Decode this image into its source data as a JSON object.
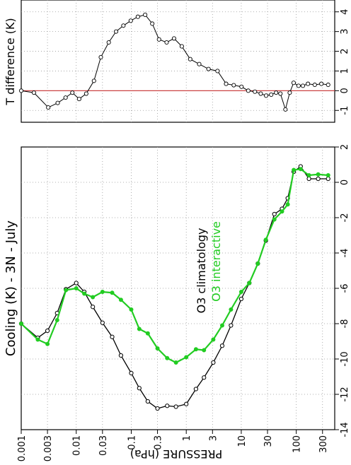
{
  "colors": {
    "climatology": "#000000",
    "interactive": "#22cc22",
    "zero_line": "#cc4444",
    "grid": "#999999"
  },
  "chart_data": [
    {
      "id": "temperature-difference",
      "type": "line",
      "title": "",
      "ylabel": "T difference (K)",
      "xlabel": "",
      "x_scale": "log",
      "xlim": [
        0.001,
        500
      ],
      "ylim": [
        -1.6,
        4.6
      ],
      "ytick_values": [
        -1,
        0,
        1,
        2,
        3,
        4
      ],
      "ytick_labels": [
        "-1",
        "0",
        "1",
        "2",
        "3",
        "4"
      ],
      "grid": true,
      "reference_line": 0,
      "series": [
        {
          "color": "#000000",
          "x": [
            0.001,
            0.0017,
            0.0031,
            0.0046,
            0.0064,
            0.0085,
            0.0113,
            0.0152,
            0.021,
            0.028,
            0.039,
            0.053,
            0.072,
            0.098,
            0.132,
            0.179,
            0.241,
            0.32,
            0.44,
            0.6,
            0.83,
            1.18,
            1.72,
            2.54,
            3.7,
            5.3,
            7.3,
            10.1,
            13.4,
            17.7,
            22.6,
            28.3,
            35.0,
            43.0,
            51.5,
            63.5,
            76.0,
            89.5,
            110,
            132,
            163,
            217,
            286,
            380
          ],
          "y": [
            0.0,
            -0.1,
            -0.85,
            -0.62,
            -0.35,
            -0.1,
            -0.42,
            -0.15,
            0.5,
            1.7,
            2.45,
            3.0,
            3.3,
            3.55,
            3.75,
            3.85,
            3.4,
            2.6,
            2.45,
            2.65,
            2.25,
            1.6,
            1.35,
            1.1,
            1.0,
            0.35,
            0.28,
            0.2,
            0.0,
            -0.05,
            -0.15,
            -0.25,
            -0.2,
            -0.1,
            -0.15,
            -0.95,
            -0.1,
            0.4,
            0.25,
            0.25,
            0.35,
            0.3,
            0.35,
            0.3
          ]
        }
      ]
    },
    {
      "id": "cooling-rate",
      "type": "line",
      "title": "Cooling (K) - 3N - July",
      "xlabel": "PRESSURE (hPa)",
      "ylabel": "",
      "x_scale": "log",
      "xlim": [
        0.001,
        500
      ],
      "xtick_values": [
        0.001,
        0.003,
        0.01,
        0.03,
        0.1,
        0.3,
        1,
        3,
        10,
        30,
        100,
        300
      ],
      "xtick_labels": [
        "0.001",
        "0.003",
        "0.01",
        "0.03",
        "0.1",
        "0.3",
        "1",
        "3",
        "10",
        "30",
        "100",
        "300"
      ],
      "ylim": [
        -14,
        2
      ],
      "ytick_values": [
        -14,
        -12,
        -10,
        -8,
        -6,
        -4,
        -2,
        0,
        2
      ],
      "ytick_labels": [
        "-14",
        "-12",
        "-10",
        "-8",
        "-6",
        "-4",
        "-2",
        "0",
        "2"
      ],
      "grid": true,
      "series": [
        {
          "name": "O3 climatology",
          "color": "#000000",
          "marker": "open-circle",
          "x": [
            0.001,
            0.002,
            0.003,
            0.0045,
            0.0065,
            0.01,
            0.014,
            0.02,
            0.03,
            0.045,
            0.065,
            0.1,
            0.14,
            0.2,
            0.3,
            0.45,
            0.65,
            1,
            1.5,
            2.1,
            3.1,
            4.5,
            6.5,
            10,
            14,
            20,
            28,
            40,
            55,
            70,
            90,
            120,
            170,
            250,
            380
          ],
          "y": [
            -8.0,
            -8.8,
            -8.4,
            -7.4,
            -6.05,
            -5.7,
            -6.2,
            -7.05,
            -7.95,
            -8.75,
            -9.8,
            -10.8,
            -11.65,
            -12.4,
            -12.8,
            -12.65,
            -12.7,
            -12.55,
            -11.7,
            -11.05,
            -10.2,
            -9.25,
            -8.1,
            -6.6,
            -5.7,
            -4.6,
            -3.3,
            -1.8,
            -1.5,
            -0.9,
            0.6,
            0.9,
            0.2,
            0.2,
            0.2
          ]
        },
        {
          "name": "O3 interactive",
          "color": "#22cc22",
          "marker": "filled-circle",
          "x": [
            0.001,
            0.002,
            0.003,
            0.0045,
            0.0065,
            0.01,
            0.014,
            0.02,
            0.03,
            0.045,
            0.065,
            0.1,
            0.14,
            0.2,
            0.3,
            0.45,
            0.65,
            1,
            1.5,
            2.1,
            3.1,
            4.5,
            6.5,
            10,
            14,
            20,
            28,
            40,
            55,
            70,
            90,
            120,
            170,
            250,
            380
          ],
          "y": [
            -8.0,
            -8.9,
            -9.15,
            -7.8,
            -6.1,
            -6.0,
            -6.3,
            -6.5,
            -6.2,
            -6.25,
            -6.65,
            -7.2,
            -8.3,
            -8.55,
            -9.4,
            -9.95,
            -10.2,
            -9.9,
            -9.45,
            -9.5,
            -8.9,
            -8.1,
            -7.2,
            -6.2,
            -5.7,
            -4.6,
            -3.25,
            -2.1,
            -1.65,
            -1.25,
            0.7,
            0.75,
            0.4,
            0.45,
            0.4
          ]
        }
      ]
    }
  ]
}
